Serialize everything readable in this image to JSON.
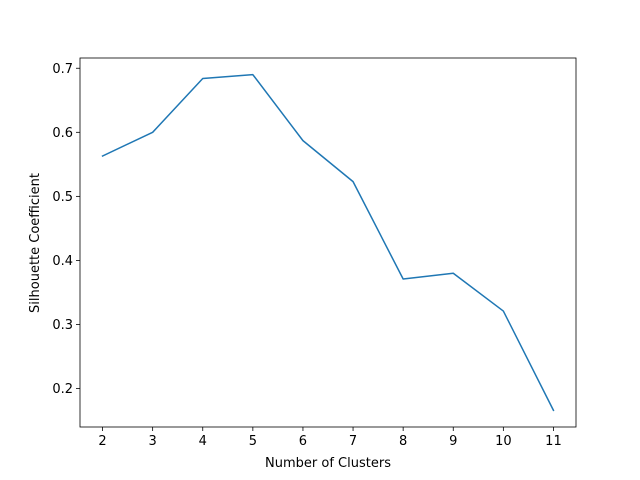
{
  "chart_data": {
    "type": "line",
    "title": "",
    "xlabel": "Number of Clusters",
    "ylabel": "Silhouette Coefficient",
    "x": [
      2,
      3,
      4,
      5,
      6,
      7,
      8,
      9,
      10,
      11
    ],
    "series": [
      {
        "values": [
          0.563,
          0.6,
          0.684,
          0.69,
          0.587,
          0.523,
          0.371,
          0.38,
          0.321,
          0.166
        ],
        "color": "#1f77b4"
      }
    ],
    "xticks": [
      "2",
      "3",
      "4",
      "5",
      "6",
      "7",
      "8",
      "9",
      "10",
      "11"
    ],
    "yticks": [
      "0.2",
      "0.3",
      "0.4",
      "0.5",
      "0.6",
      "0.7"
    ],
    "xlim": [
      1.55,
      11.45
    ],
    "ylim": [
      0.14,
      0.716
    ],
    "grid": false,
    "legend": "none"
  }
}
